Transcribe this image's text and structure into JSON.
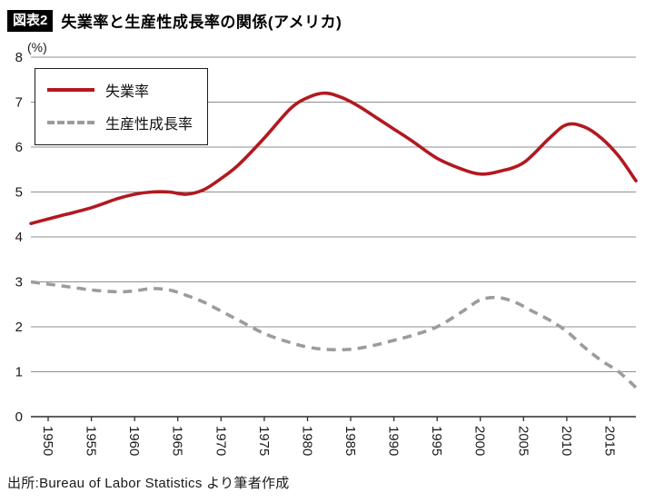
{
  "header": {
    "badge": "図表2",
    "title": "失業率と生産性成長率の関係(アメリカ)"
  },
  "legend": {
    "series1": "失業率",
    "series2": "生産性成長率"
  },
  "source": "出所:Bureau of Labor Statistics より筆者作成",
  "colors": {
    "unemployment": "#b2191f",
    "productivity": "#9c9c9c",
    "grid": "#8f8f8f",
    "axis": "#2b2b2b",
    "text": "#1a1a1a"
  },
  "chart_data": {
    "type": "line",
    "title": "失業率と生産性成長率の関係(アメリカ)",
    "unit_label": "(%)",
    "xlabel": "",
    "ylabel": "(%)",
    "xlim": [
      1948,
      2018
    ],
    "ylim": [
      0,
      8
    ],
    "y_ticks": [
      0,
      1,
      2,
      3,
      4,
      5,
      6,
      7,
      8
    ],
    "x_ticks": [
      1950,
      1955,
      1960,
      1965,
      1970,
      1975,
      1980,
      1985,
      1990,
      1995,
      2000,
      2005,
      2010,
      2015
    ],
    "grid": true,
    "legend_position": "upper-left",
    "series": [
      {
        "name": "失業率",
        "style": "solid",
        "color": "#b2191f",
        "x": [
          1948,
          1950,
          1952,
          1955,
          1958,
          1960,
          1962,
          1964,
          1966,
          1968,
          1970,
          1972,
          1975,
          1978,
          1980,
          1982,
          1984,
          1986,
          1988,
          1990,
          1992,
          1995,
          1998,
          2000,
          2002,
          2005,
          2008,
          2010,
          2012,
          2014,
          2016,
          2018
        ],
        "y": [
          4.3,
          4.4,
          4.5,
          4.65,
          4.85,
          4.95,
          5.0,
          5.0,
          4.95,
          5.05,
          5.3,
          5.6,
          6.2,
          6.85,
          7.1,
          7.2,
          7.1,
          6.9,
          6.65,
          6.4,
          6.15,
          5.75,
          5.5,
          5.4,
          5.45,
          5.65,
          6.2,
          6.5,
          6.45,
          6.2,
          5.8,
          5.25
        ]
      },
      {
        "name": "生産性成長率",
        "style": "dashed",
        "color": "#9c9c9c",
        "x": [
          1948,
          1950,
          1952,
          1955,
          1958,
          1960,
          1962,
          1964,
          1966,
          1968,
          1970,
          1972,
          1975,
          1978,
          1980,
          1982,
          1985,
          1988,
          1990,
          1992,
          1995,
          1998,
          2000,
          2002,
          2004,
          2006,
          2008,
          2010,
          2012,
          2014,
          2016,
          2018
        ],
        "y": [
          3.0,
          2.95,
          2.9,
          2.82,
          2.78,
          2.8,
          2.85,
          2.82,
          2.7,
          2.55,
          2.35,
          2.15,
          1.85,
          1.65,
          1.55,
          1.5,
          1.5,
          1.6,
          1.7,
          1.8,
          2.0,
          2.35,
          2.6,
          2.65,
          2.55,
          2.35,
          2.15,
          1.9,
          1.55,
          1.25,
          1.0,
          0.65
        ]
      }
    ]
  }
}
